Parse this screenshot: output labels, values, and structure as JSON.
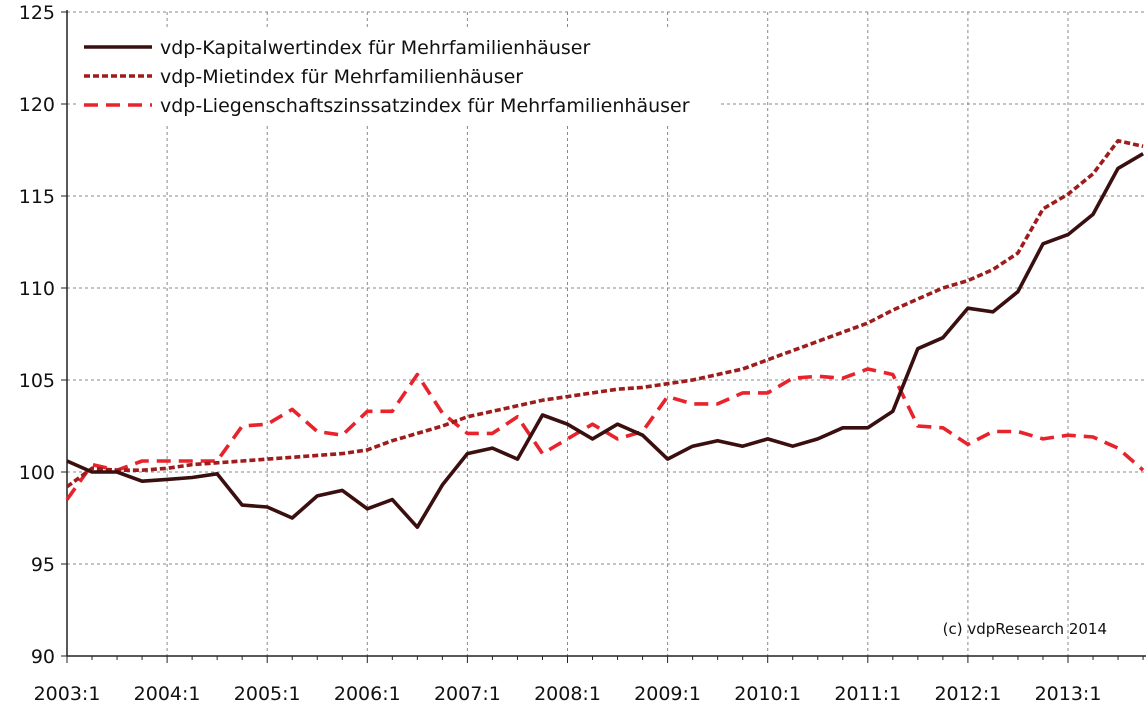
{
  "chart_data": {
    "type": "line",
    "title": "",
    "xlabel": "",
    "ylabel": "",
    "ylim": [
      90,
      125
    ],
    "yticks": [
      90,
      95,
      100,
      105,
      110,
      115,
      120,
      125
    ],
    "xticks": [
      "2003:1",
      "2004:1",
      "2005:1",
      "2006:1",
      "2007:1",
      "2008:1",
      "2009:1",
      "2010:1",
      "2011:1",
      "2012:1",
      "2013:1"
    ],
    "grid": true,
    "legend_position": "top-left",
    "credit": "(c) vdpResearch 2014",
    "series": [
      {
        "name": "vdp-Kapitalwertindex für Mehrfamilienhäuser",
        "color": "#3a0f0f",
        "style": "solid",
        "values": [
          100.6,
          100.0,
          100.0,
          99.5,
          99.6,
          99.7,
          99.9,
          98.2,
          98.1,
          97.5,
          98.7,
          99.0,
          98.0,
          98.5,
          97.0,
          99.3,
          101.0,
          101.3,
          100.7,
          103.1,
          102.6,
          101.8,
          102.6,
          102.0,
          100.7,
          101.4,
          101.7,
          101.4,
          101.8,
          101.4,
          101.8,
          102.4,
          102.4,
          103.3,
          106.7,
          107.3,
          108.9,
          108.7,
          109.8,
          112.4,
          112.9,
          114.0,
          116.5,
          117.3
        ]
      },
      {
        "name": "vdp-Mietindex für Mehrfamilienhäuser",
        "color": "#9e1c1c",
        "style": "dotted",
        "values": [
          99.2,
          100.2,
          100.1,
          100.1,
          100.2,
          100.4,
          100.5,
          100.6,
          100.7,
          100.8,
          100.9,
          101.0,
          101.2,
          101.7,
          102.1,
          102.5,
          103.0,
          103.3,
          103.6,
          103.9,
          104.1,
          104.3,
          104.5,
          104.6,
          104.8,
          105.0,
          105.3,
          105.6,
          106.1,
          106.6,
          107.1,
          107.6,
          108.1,
          108.8,
          109.4,
          110.0,
          110.4,
          111.0,
          111.9,
          114.3,
          115.1,
          116.2,
          118.0,
          117.7
        ]
      },
      {
        "name": "vdp-Liegenschaftszinssatzindex für Mehrfamilienhäuser",
        "color": "#e8232c",
        "style": "dashed",
        "values": [
          98.5,
          100.4,
          100.1,
          100.6,
          100.6,
          100.6,
          100.6,
          102.5,
          102.6,
          103.4,
          102.2,
          102.0,
          103.3,
          103.3,
          105.3,
          103.2,
          102.1,
          102.1,
          103.0,
          101.0,
          101.8,
          102.6,
          101.8,
          102.2,
          104.1,
          103.7,
          103.7,
          104.3,
          104.3,
          105.1,
          105.2,
          105.1,
          105.6,
          105.3,
          102.5,
          102.4,
          101.5,
          102.2,
          102.2,
          101.8,
          102.0,
          101.9,
          101.3,
          100.1
        ]
      }
    ]
  }
}
